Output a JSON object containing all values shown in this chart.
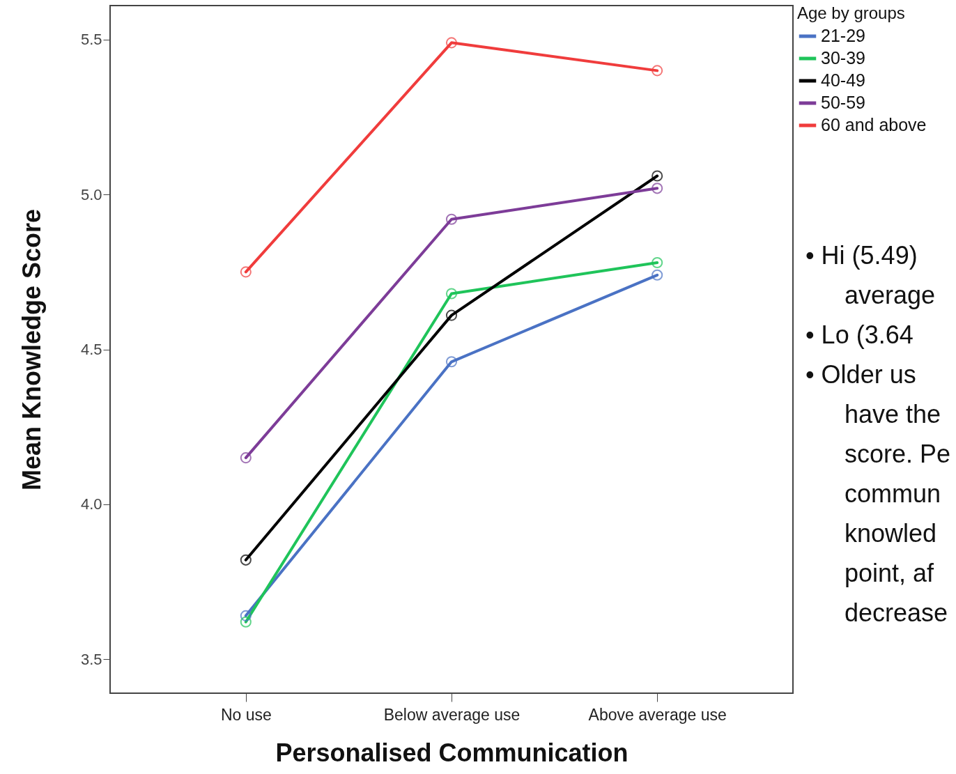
{
  "chart_data": {
    "type": "line",
    "xlabel": "Personalised Communication",
    "ylabel": "Mean Knowledge Score",
    "legend_title": "Age by groups",
    "legend": "top right",
    "marker": "circle",
    "line_style": "solid",
    "grid": false,
    "categories": [
      "No use",
      "Below average use",
      "Above average use"
    ],
    "ylim": [
      3.39,
      5.61
    ],
    "yticks": [
      {
        "value": 3.5,
        "label": "3.5"
      },
      {
        "value": 4,
        "label": "4.0"
      },
      {
        "value": 4.5,
        "label": "4.5"
      },
      {
        "value": 5,
        "label": "5.0"
      },
      {
        "value": 5.5,
        "label": "5.5"
      }
    ],
    "series": [
      {
        "name": "21-29",
        "color": "#4a72c4",
        "values": [
          3.64,
          4.46,
          4.74
        ]
      },
      {
        "name": "30-39",
        "color": "#1fc45a",
        "values": [
          3.62,
          4.68,
          4.78
        ]
      },
      {
        "name": "40-49",
        "color": "#000000",
        "values": [
          3.82,
          4.61,
          5.06
        ]
      },
      {
        "name": "50-59",
        "color": "#7d3c98",
        "values": [
          4.15,
          4.92,
          5.02
        ]
      },
      {
        "name": "60 and above",
        "color": "#f03c3c",
        "values": [
          4.75,
          5.49,
          5.4
        ]
      }
    ],
    "annotations": [
      "• Hi (5.49)\naverage",
      "• Lo (3.64",
      "• Older us\nhave the\nscore. Pe\ncommun\nknowled\npoint, af\ndecrease"
    ]
  }
}
